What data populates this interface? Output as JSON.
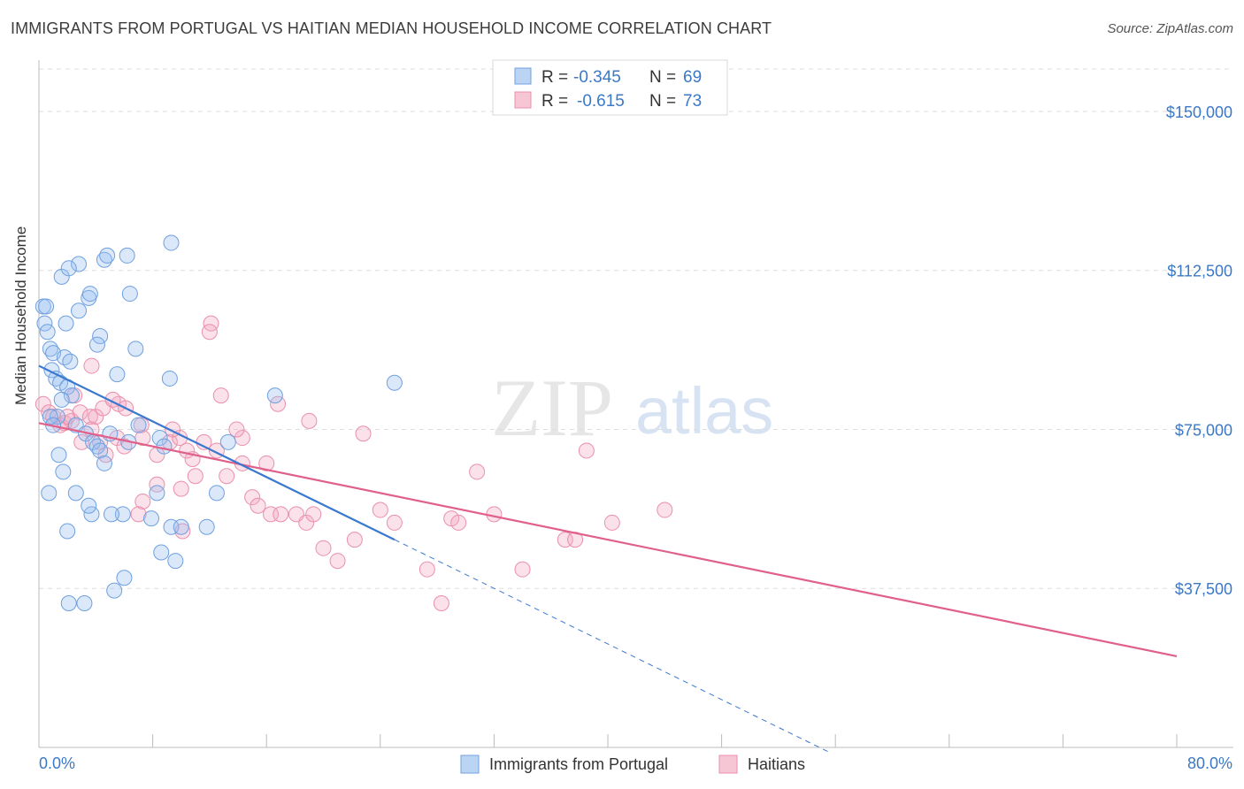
{
  "title": "IMMIGRANTS FROM PORTUGAL VS HAITIAN MEDIAN HOUSEHOLD INCOME CORRELATION CHART",
  "source": "Source: ZipAtlas.com",
  "watermark": {
    "zip": "ZIP",
    "atlas": "atlas"
  },
  "colors": {
    "blue": "#6fa0df",
    "blue_line": "#3b78d0",
    "pink": "#eb8fab",
    "pink_line": "#e0608a",
    "axis_text": "#3b78c6"
  },
  "legend": {
    "rows": [
      {
        "r_label": "R =",
        "r_value": "-0.345",
        "n_label": "N =",
        "n_value": "69"
      },
      {
        "r_label": "R =",
        "r_value": "-0.615",
        "n_label": "N =",
        "n_value": "73"
      }
    ]
  },
  "chart_data": {
    "type": "scatter",
    "ylabel": "Median Household Income",
    "xlim": [
      0,
      80
    ],
    "ylim": [
      0,
      160000
    ],
    "x_tick_labels": [
      "0.0%",
      "80.0%"
    ],
    "y_ticks": [
      37500,
      75000,
      112500,
      150000
    ],
    "y_tick_labels": [
      "$37,500",
      "$75,000",
      "$112,500",
      "$150,000"
    ],
    "grid": true,
    "legend_position": "top-center",
    "series": [
      {
        "name": "Immigrants from Portugal",
        "trend": {
          "x0": 0,
          "y0": 90000,
          "x1": 25,
          "y1": 49000,
          "dashed_to_x": 55.5
        },
        "points": [
          [
            0.3,
            104000
          ],
          [
            0.5,
            104000
          ],
          [
            0.4,
            100000
          ],
          [
            0.6,
            98000
          ],
          [
            0.8,
            94000
          ],
          [
            1.0,
            93000
          ],
          [
            0.9,
            89000
          ],
          [
            1.2,
            87000
          ],
          [
            1.5,
            86000
          ],
          [
            1.8,
            92000
          ],
          [
            2.2,
            91000
          ],
          [
            2.0,
            85000
          ],
          [
            2.3,
            83000
          ],
          [
            1.6,
            82000
          ],
          [
            1.3,
            78000
          ],
          [
            0.8,
            78000
          ],
          [
            2.6,
            76000
          ],
          [
            1.0,
            76000
          ],
          [
            3.3,
            74000
          ],
          [
            3.8,
            72000
          ],
          [
            4.1,
            71000
          ],
          [
            4.3,
            70000
          ],
          [
            5.0,
            74000
          ],
          [
            6.3,
            72000
          ],
          [
            7.0,
            76000
          ],
          [
            8.5,
            73000
          ],
          [
            8.8,
            71000
          ],
          [
            8.3,
            60000
          ],
          [
            5.9,
            55000
          ],
          [
            5.1,
            55000
          ],
          [
            7.9,
            54000
          ],
          [
            9.3,
            52000
          ],
          [
            10.0,
            52000
          ],
          [
            11.8,
            52000
          ],
          [
            8.6,
            46000
          ],
          [
            6.0,
            40000
          ],
          [
            2.1,
            34000
          ],
          [
            3.2,
            34000
          ],
          [
            12.5,
            60000
          ],
          [
            13.3,
            72000
          ],
          [
            16.6,
            83000
          ],
          [
            25.0,
            86000
          ],
          [
            9.6,
            44000
          ],
          [
            5.3,
            37000
          ],
          [
            3.7,
            55000
          ],
          [
            4.6,
            67000
          ],
          [
            2.6,
            60000
          ],
          [
            2.0,
            51000
          ],
          [
            1.7,
            65000
          ],
          [
            3.5,
            57000
          ],
          [
            0.7,
            60000
          ],
          [
            1.4,
            69000
          ],
          [
            9.2,
            87000
          ],
          [
            6.8,
            94000
          ],
          [
            5.5,
            88000
          ],
          [
            4.3,
            97000
          ],
          [
            4.1,
            95000
          ],
          [
            2.8,
            103000
          ],
          [
            3.5,
            106000
          ],
          [
            3.6,
            107000
          ],
          [
            1.9,
            100000
          ],
          [
            1.6,
            111000
          ],
          [
            2.8,
            114000
          ],
          [
            4.6,
            115000
          ],
          [
            4.8,
            116000
          ],
          [
            6.2,
            116000
          ],
          [
            2.1,
            113000
          ],
          [
            9.3,
            119000
          ],
          [
            6.4,
            107000
          ]
        ]
      },
      {
        "name": "Haitians",
        "trend": {
          "x0": 0,
          "y0": 76500,
          "x1": 80,
          "y1": 21500
        },
        "points": [
          [
            0.3,
            81000
          ],
          [
            0.7,
            79000
          ],
          [
            1.0,
            78000
          ],
          [
            1.5,
            76000
          ],
          [
            1.8,
            76500
          ],
          [
            2.3,
            77000
          ],
          [
            2.9,
            79000
          ],
          [
            3.6,
            78000
          ],
          [
            4.0,
            78000
          ],
          [
            4.5,
            80000
          ],
          [
            5.6,
            81000
          ],
          [
            3.0,
            72000
          ],
          [
            3.7,
            75000
          ],
          [
            4.3,
            72000
          ],
          [
            4.7,
            69000
          ],
          [
            5.5,
            73000
          ],
          [
            6.0,
            71000
          ],
          [
            7.2,
            76000
          ],
          [
            7.3,
            73000
          ],
          [
            8.3,
            69000
          ],
          [
            9.2,
            72000
          ],
          [
            9.9,
            73000
          ],
          [
            10.8,
            68000
          ],
          [
            11.6,
            72000
          ],
          [
            12.5,
            70000
          ],
          [
            13.2,
            64000
          ],
          [
            14.3,
            67000
          ],
          [
            15.0,
            59000
          ],
          [
            15.4,
            57000
          ],
          [
            16.0,
            67000
          ],
          [
            16.3,
            55000
          ],
          [
            17.0,
            55000
          ],
          [
            18.1,
            55000
          ],
          [
            18.8,
            53000
          ],
          [
            19.3,
            55000
          ],
          [
            20.0,
            47000
          ],
          [
            21.0,
            44000
          ],
          [
            22.2,
            49000
          ],
          [
            24.0,
            56000
          ],
          [
            25.0,
            53000
          ],
          [
            27.3,
            42000
          ],
          [
            28.3,
            34000
          ],
          [
            29.0,
            54000
          ],
          [
            29.5,
            53000
          ],
          [
            30.8,
            65000
          ],
          [
            32.0,
            55000
          ],
          [
            34.0,
            42000
          ],
          [
            37.0,
            49000
          ],
          [
            37.7,
            49000
          ],
          [
            38.5,
            70000
          ],
          [
            40.3,
            53000
          ],
          [
            44.0,
            56000
          ],
          [
            16.8,
            81000
          ],
          [
            19.0,
            77000
          ],
          [
            14.3,
            73000
          ],
          [
            10.4,
            70000
          ],
          [
            12.1,
            100000
          ],
          [
            12.0,
            98000
          ],
          [
            12.8,
            83000
          ],
          [
            10.0,
            61000
          ],
          [
            8.3,
            62000
          ],
          [
            7.3,
            58000
          ],
          [
            7.0,
            55000
          ],
          [
            10.1,
            51000
          ],
          [
            11.0,
            64000
          ],
          [
            2.0,
            78000
          ],
          [
            2.5,
            83000
          ],
          [
            3.7,
            90000
          ],
          [
            5.2,
            82000
          ],
          [
            6.1,
            80000
          ],
          [
            9.4,
            75000
          ],
          [
            13.9,
            75000
          ],
          [
            22.8,
            74000
          ]
        ]
      }
    ]
  },
  "bottom_legend": [
    "Immigrants from Portugal",
    "Haitians"
  ]
}
